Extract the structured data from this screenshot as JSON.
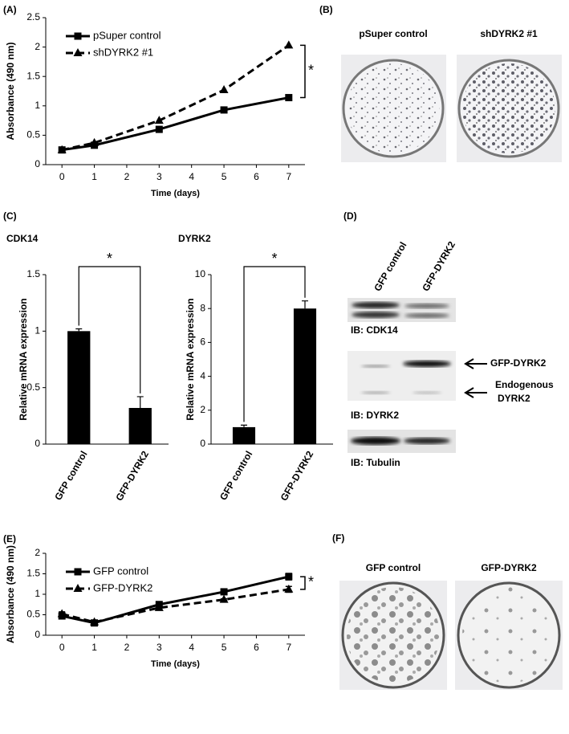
{
  "chart_data": [
    {
      "type": "line",
      "panel": "(A)",
      "xlabel": "Time (days)",
      "ylabel": "Absorbance (490 nm)",
      "x": [
        0,
        1,
        3,
        5,
        7
      ],
      "xlim": [
        -0.5,
        7.5
      ],
      "xticks": [
        0,
        1,
        2,
        3,
        4,
        5,
        6,
        7
      ],
      "ylim": [
        0,
        2.5
      ],
      "yticks": [
        0,
        0.5,
        1,
        1.5,
        2,
        2.5
      ],
      "legend": "upper left",
      "annotation": "*",
      "series": [
        {
          "name": "pSuper control",
          "color": "#000000",
          "marker": "square",
          "line_style": "solid",
          "values": [
            0.25,
            0.33,
            0.6,
            0.93,
            1.14
          ]
        },
        {
          "name": "shDYRK2 #1",
          "color": "#000000",
          "marker": "triangle",
          "line_style": "dashed",
          "values": [
            0.25,
            0.37,
            0.75,
            1.27,
            2.03
          ]
        }
      ]
    },
    {
      "type": "bar",
      "panel": "(C)",
      "title": "CDK14",
      "ylabel": "Relative mRNA expression",
      "categories": [
        "GFP control",
        "GFP-DYRK2"
      ],
      "values": [
        1.0,
        0.32
      ],
      "errors": [
        0.02,
        0.1
      ],
      "color": "#000000",
      "ylim": [
        0,
        1.5
      ],
      "yticks": [
        0,
        0.5,
        1,
        1.5
      ],
      "annotation": "*"
    },
    {
      "type": "bar",
      "title": "DYRK2",
      "ylabel": "Relative mRNA expression",
      "categories": [
        "GFP control",
        "GFP-DYRK2"
      ],
      "values": [
        1.0,
        8.0
      ],
      "errors": [
        0.12,
        0.45
      ],
      "color": "#000000",
      "ylim": [
        0,
        10
      ],
      "yticks": [
        0,
        2,
        4,
        6,
        8,
        10
      ],
      "annotation": "*"
    },
    {
      "type": "line",
      "panel": "(E)",
      "xlabel": "Time (days)",
      "ylabel": "Absorbance (490 nm)",
      "x": [
        0,
        1,
        3,
        5,
        7
      ],
      "xlim": [
        -0.5,
        7.5
      ],
      "xticks": [
        0,
        1,
        2,
        3,
        4,
        5,
        6,
        7
      ],
      "ylim": [
        0,
        2
      ],
      "yticks": [
        0,
        0.5,
        1,
        1.5,
        2
      ],
      "legend": "upper left",
      "annotation": "*",
      "series": [
        {
          "name": "GFP control",
          "color": "#000000",
          "marker": "square",
          "line_style": "solid",
          "values": [
            0.47,
            0.3,
            0.75,
            1.06,
            1.43
          ],
          "errors": [
            0.03,
            0.03,
            0.03,
            0.03,
            0.08
          ]
        },
        {
          "name": "GFP-DYRK2",
          "color": "#000000",
          "marker": "triangle",
          "line_style": "dashed",
          "values": [
            0.52,
            0.32,
            0.67,
            0.87,
            1.12
          ],
          "errors": [
            0.05,
            0.03,
            0.03,
            0.02,
            0.07
          ]
        }
      ]
    }
  ],
  "panel_B": {
    "label": "(B)",
    "columns": [
      "pSuper control",
      "shDYRK2 #1"
    ]
  },
  "panel_D": {
    "label": "(D)",
    "columns": [
      "GFP control",
      "GFP-DYRK2"
    ],
    "blots": [
      "IB: CDK14",
      "IB: DYRK2",
      "IB: Tubulin"
    ],
    "arrows": [
      "GFP-DYRK2",
      [
        "Endogenous",
        "DYRK2"
      ]
    ]
  },
  "panel_F": {
    "label": "(F)",
    "columns": [
      "GFP control",
      "GFP-DYRK2"
    ]
  }
}
